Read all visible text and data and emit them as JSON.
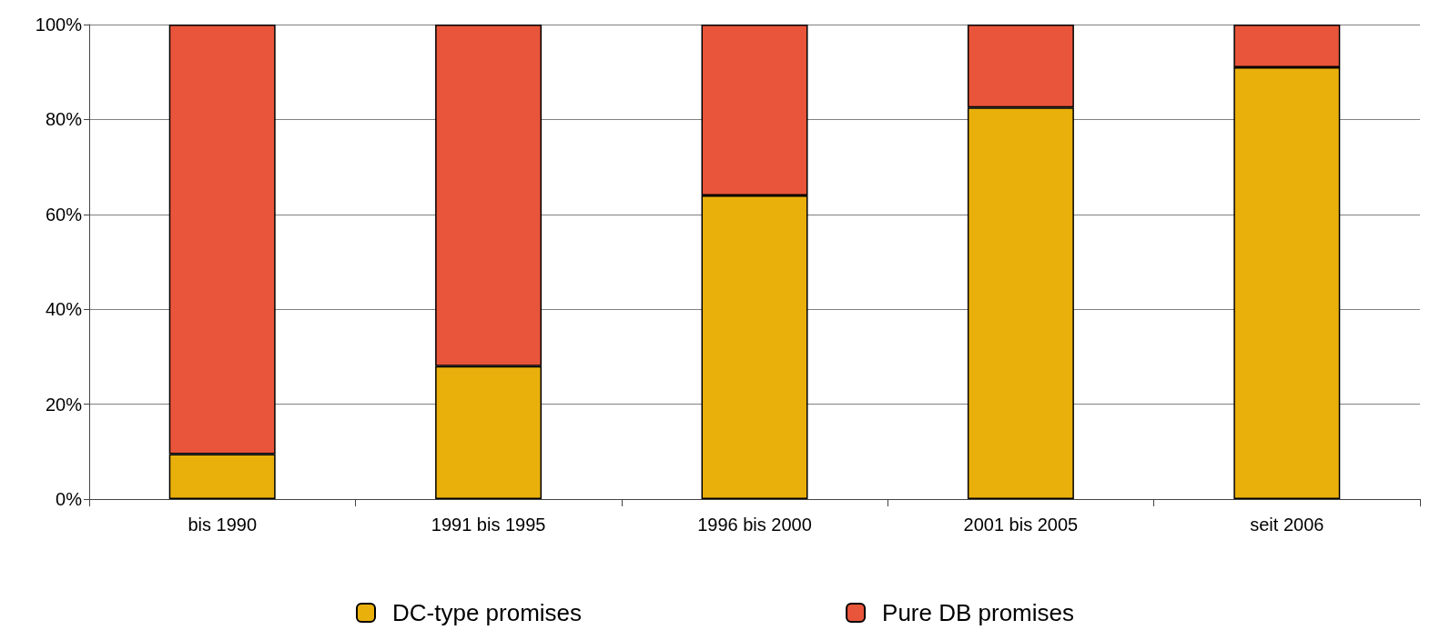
{
  "chart_data": {
    "type": "bar",
    "stacked": true,
    "categories": [
      "bis 1990",
      "1991 bis 1995",
      "1996 bis 2000",
      "2001 bis 2005",
      "seit 2006"
    ],
    "series": [
      {
        "name": "DC-type promises",
        "color": "#e9b00c",
        "values": [
          9.5,
          28,
          64,
          82.5,
          91
        ]
      },
      {
        "name": "Pure DB promises",
        "color": "#e8553a",
        "values": [
          90.5,
          72,
          36,
          17.5,
          9
        ]
      }
    ],
    "ylim": [
      0,
      100
    ],
    "yticks": [
      {
        "value": 0,
        "label": "0%"
      },
      {
        "value": 20,
        "label": "20%"
      },
      {
        "value": 40,
        "label": "40%"
      },
      {
        "value": 60,
        "label": "60%"
      },
      {
        "value": 80,
        "label": "80%"
      },
      {
        "value": 100,
        "label": "100%"
      }
    ],
    "grid": "y",
    "legend": "bottom"
  }
}
